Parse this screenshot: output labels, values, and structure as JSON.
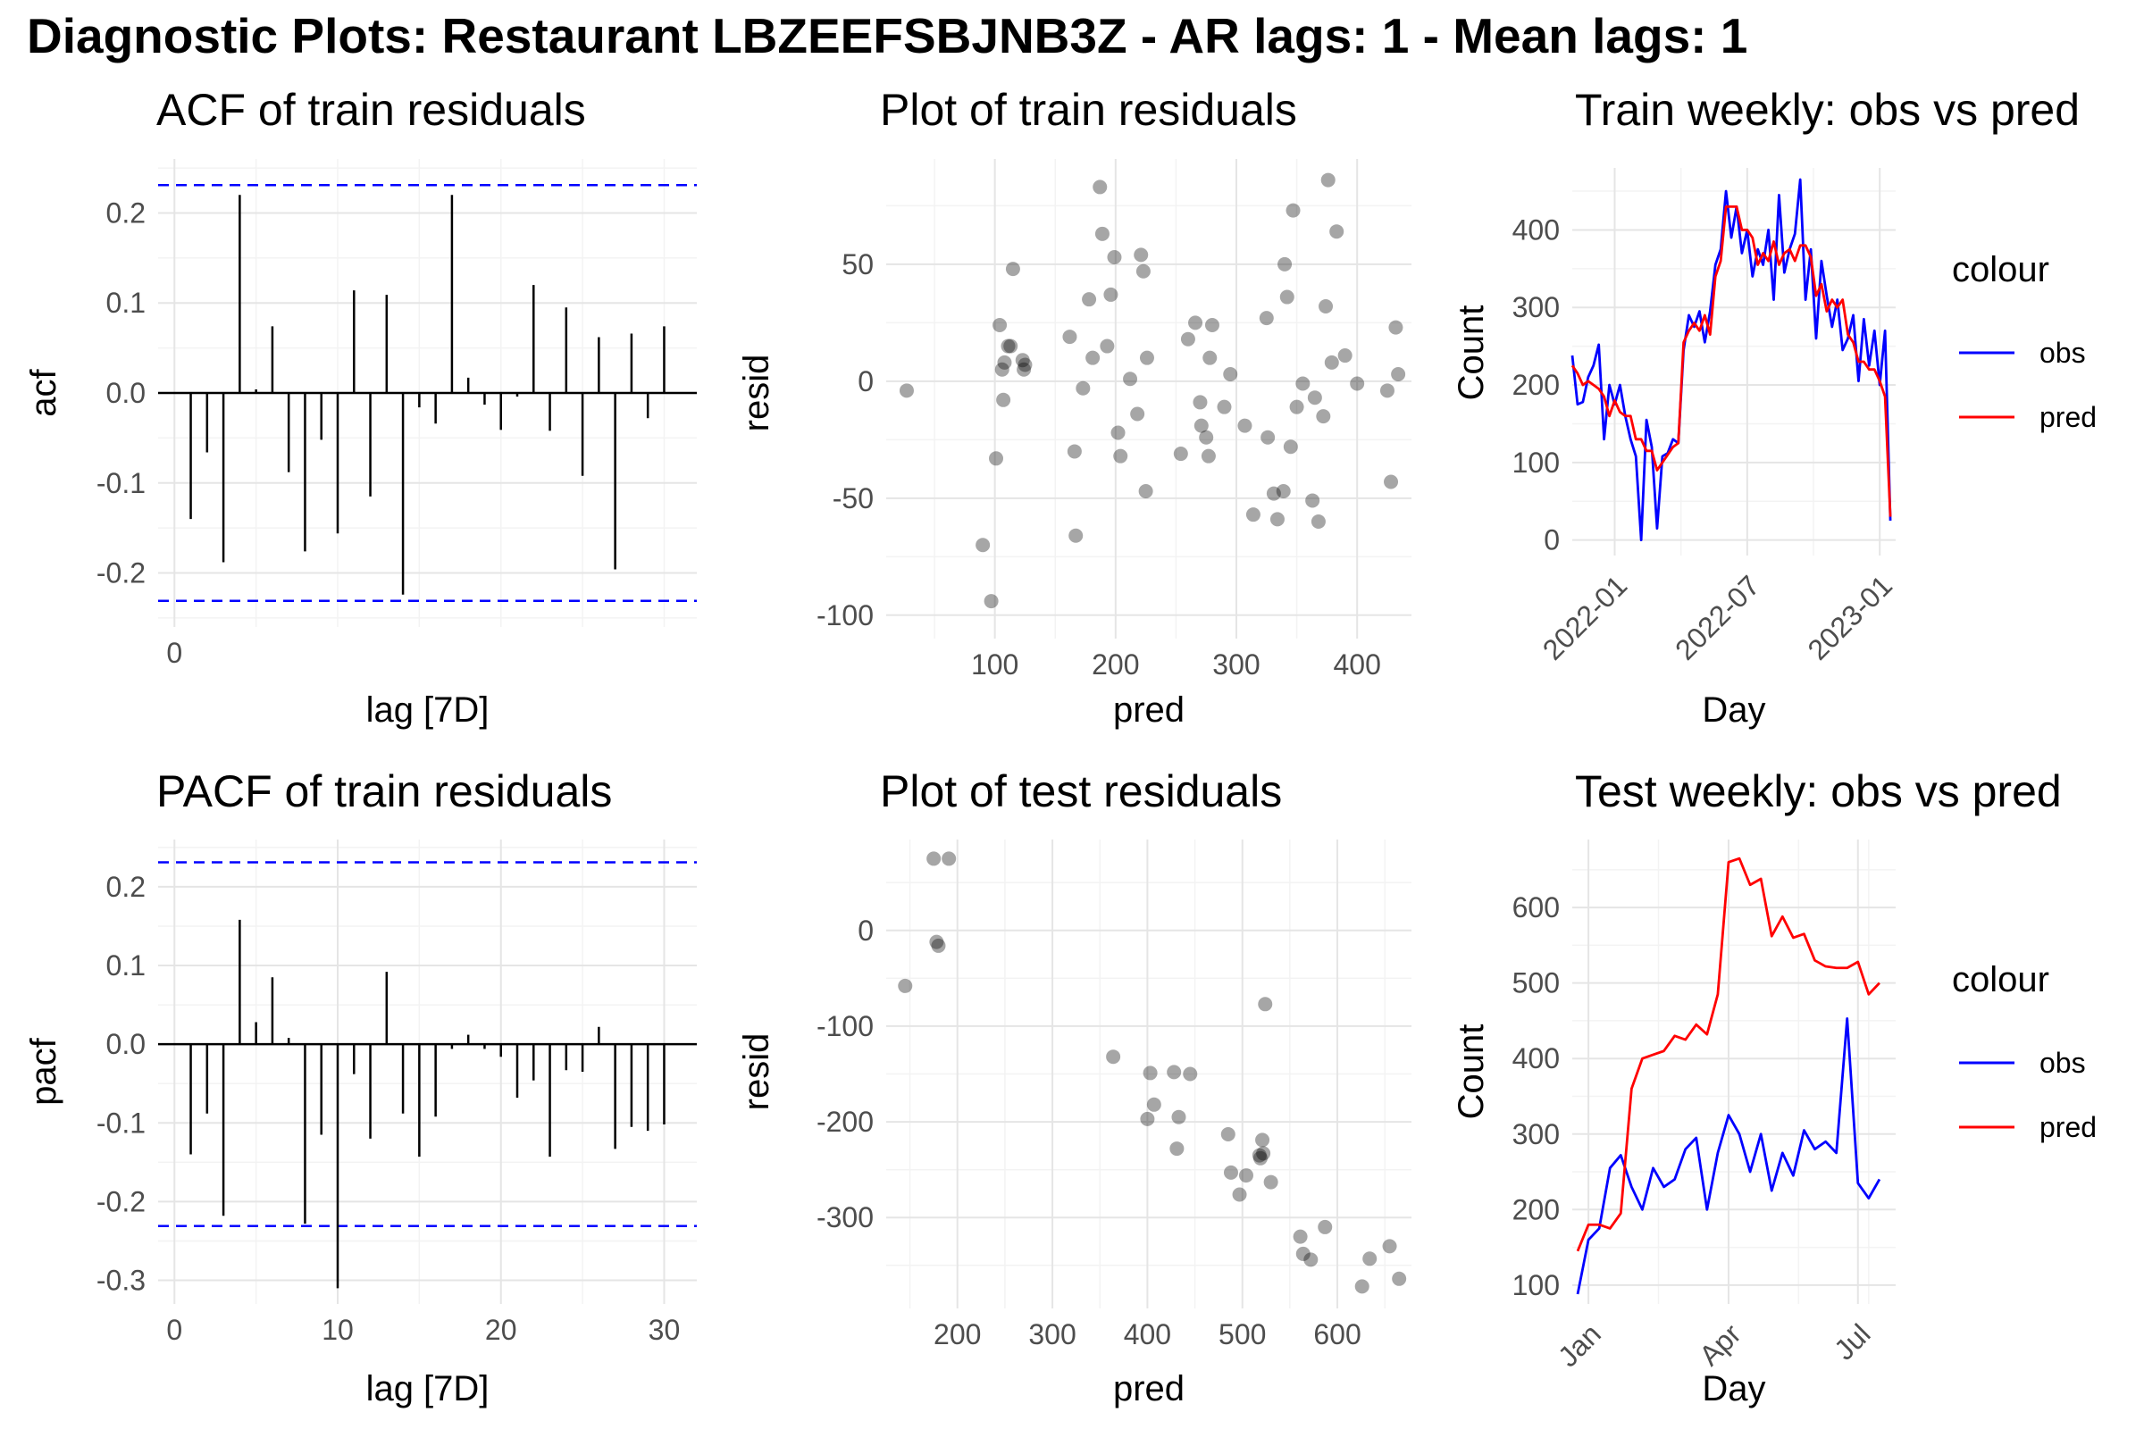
{
  "title": "Diagnostic Plots: Restaurant LBZEEFSBJNB3Z - AR lags: 1 - Mean lags: 1",
  "chart_data": [
    {
      "id": "acf-train",
      "type": "bar",
      "title": "ACF of train residuals",
      "xlabel": "lag [7D]",
      "ylabel": "acf",
      "xlim": [
        -1,
        32
      ],
      "ylim": [
        -0.26,
        0.26
      ],
      "x_ticks": [
        0
      ],
      "y_ticks": [
        -0.2,
        -0.1,
        0.0,
        0.1,
        0.2
      ],
      "y_tick_labels": [
        "-0.2",
        "-0.1",
        "0.0",
        "0.1",
        "0.2"
      ],
      "confidence_band": 0.231,
      "lags": [
        1,
        2,
        3,
        4,
        5,
        6,
        7,
        8,
        9,
        10,
        11,
        12,
        13,
        14,
        15,
        16,
        17,
        18,
        19,
        20,
        21,
        22,
        23,
        24,
        25,
        26,
        27,
        28,
        29,
        30
      ],
      "values": [
        -0.14,
        -0.066,
        -0.188,
        0.22,
        0.004,
        0.074,
        -0.088,
        -0.176,
        -0.052,
        -0.156,
        0.114,
        -0.115,
        0.109,
        -0.224,
        -0.016,
        -0.034,
        0.22,
        0.017,
        -0.013,
        -0.041,
        -0.004,
        0.12,
        -0.042,
        0.095,
        -0.092,
        0.062,
        -0.196,
        0.066,
        -0.028,
        0.074
      ],
      "grid": true
    },
    {
      "id": "pacf-train",
      "type": "bar",
      "title": "PACF of train residuals",
      "xlabel": "lag [7D]",
      "ylabel": "pacf",
      "xlim": [
        -1,
        32
      ],
      "ylim": [
        -0.33,
        0.26
      ],
      "x_ticks": [
        0,
        10,
        20,
        30
      ],
      "y_ticks": [
        -0.3,
        -0.2,
        -0.1,
        0.0,
        0.1,
        0.2
      ],
      "y_tick_labels": [
        "-0.3",
        "-0.2",
        "-0.1",
        "0.0",
        "0.1",
        "0.2"
      ],
      "confidence_band": 0.231,
      "lags": [
        1,
        2,
        3,
        4,
        5,
        6,
        7,
        8,
        9,
        10,
        11,
        12,
        13,
        14,
        15,
        16,
        17,
        18,
        19,
        20,
        21,
        22,
        23,
        24,
        25,
        26,
        27,
        28,
        29,
        30
      ],
      "values": [
        -0.14,
        -0.088,
        -0.218,
        0.158,
        0.028,
        0.085,
        0.008,
        -0.228,
        -0.115,
        -0.31,
        -0.038,
        -0.12,
        0.092,
        -0.088,
        -0.143,
        -0.092,
        -0.006,
        0.012,
        -0.006,
        -0.016,
        -0.068,
        -0.046,
        -0.143,
        -0.033,
        -0.035,
        0.022,
        -0.133,
        -0.105,
        -0.11,
        -0.102
      ],
      "grid": true
    },
    {
      "id": "train-resid",
      "type": "scatter",
      "title": "Plot of train residuals",
      "xlabel": "pred",
      "ylabel": "resid",
      "xlim": [
        10,
        445
      ],
      "ylim": [
        -110,
        95
      ],
      "x_ticks": [
        100,
        200,
        300,
        400
      ],
      "y_ticks": [
        -100,
        -50,
        0,
        50
      ],
      "points": [
        [
          27,
          -4
        ],
        [
          90,
          -70
        ],
        [
          97,
          -94
        ],
        [
          101,
          -33
        ],
        [
          104,
          24
        ],
        [
          106,
          5
        ],
        [
          107,
          -8
        ],
        [
          108,
          8
        ],
        [
          111,
          15
        ],
        [
          113,
          15
        ],
        [
          115,
          48
        ],
        [
          123,
          9
        ],
        [
          124,
          5
        ],
        [
          125,
          7
        ],
        [
          162,
          19
        ],
        [
          166,
          -30
        ],
        [
          167,
          -66
        ],
        [
          173,
          -3
        ],
        [
          178,
          35
        ],
        [
          181,
          10
        ],
        [
          187,
          83
        ],
        [
          189,
          63
        ],
        [
          193,
          15
        ],
        [
          196,
          37
        ],
        [
          199,
          53
        ],
        [
          202,
          -22
        ],
        [
          204,
          -32
        ],
        [
          212,
          1
        ],
        [
          218,
          -14
        ],
        [
          221,
          54
        ],
        [
          223,
          47
        ],
        [
          225,
          -47
        ],
        [
          226,
          10
        ],
        [
          254,
          -31
        ],
        [
          260,
          18
        ],
        [
          266,
          25
        ],
        [
          270,
          -9
        ],
        [
          271,
          -19
        ],
        [
          275,
          -24
        ],
        [
          277,
          -32
        ],
        [
          278,
          10
        ],
        [
          280,
          24
        ],
        [
          290,
          -11
        ],
        [
          295,
          3
        ],
        [
          307,
          -19
        ],
        [
          314,
          -57
        ],
        [
          325,
          27
        ],
        [
          326,
          -24
        ],
        [
          331,
          -48
        ],
        [
          334,
          -59
        ],
        [
          339,
          -47
        ],
        [
          340,
          50
        ],
        [
          342,
          36
        ],
        [
          345,
          -28
        ],
        [
          347,
          73
        ],
        [
          350,
          -11
        ],
        [
          355,
          -1
        ],
        [
          363,
          -51
        ],
        [
          365,
          -7
        ],
        [
          368,
          -60
        ],
        [
          372,
          -15
        ],
        [
          374,
          32
        ],
        [
          376,
          86
        ],
        [
          379,
          8
        ],
        [
          383,
          64
        ],
        [
          390,
          11
        ],
        [
          400,
          -1
        ],
        [
          425,
          -4
        ],
        [
          428,
          -43
        ],
        [
          432,
          23
        ],
        [
          434,
          3
        ]
      ],
      "grid": true
    },
    {
      "id": "test-resid",
      "type": "scatter",
      "title": "Plot of test residuals",
      "xlabel": "pred",
      "ylabel": "resid",
      "xlim": [
        125,
        678
      ],
      "ylim": [
        -395,
        95
      ],
      "x_ticks": [
        200,
        300,
        400,
        500,
        600
      ],
      "y_ticks": [
        -300,
        -200,
        -100,
        0
      ],
      "points": [
        [
          145,
          -58
        ],
        [
          175,
          75
        ],
        [
          178,
          -12
        ],
        [
          180,
          -16
        ],
        [
          191,
          75
        ],
        [
          364,
          -132
        ],
        [
          400,
          -197
        ],
        [
          403,
          -149
        ],
        [
          407,
          -182
        ],
        [
          428,
          -148
        ],
        [
          431,
          -228
        ],
        [
          433,
          -195
        ],
        [
          445,
          -150
        ],
        [
          485,
          -213
        ],
        [
          488,
          -253
        ],
        [
          497,
          -276
        ],
        [
          504,
          -256
        ],
        [
          518,
          -235
        ],
        [
          519,
          -238
        ],
        [
          521,
          -219
        ],
        [
          522,
          -233
        ],
        [
          524,
          -77
        ],
        [
          530,
          -263
        ],
        [
          561,
          -320
        ],
        [
          564,
          -338
        ],
        [
          572,
          -344
        ],
        [
          587,
          -310
        ],
        [
          626,
          -372
        ],
        [
          634,
          -343
        ],
        [
          655,
          -330
        ],
        [
          665,
          -364
        ]
      ],
      "grid": true
    },
    {
      "id": "train-weekly",
      "type": "line",
      "title": "Train weekly: obs vs pred",
      "xlabel": "Day",
      "ylabel": "Count",
      "xlim": [
        0,
        61
      ],
      "ylim": [
        -20,
        480
      ],
      "x_ticks": [
        8,
        33,
        58
      ],
      "x_tick_labels": [
        "2022-01",
        "2022-07",
        "2023-01"
      ],
      "y_ticks": [
        0,
        100,
        200,
        300,
        400
      ],
      "legend_title": "colour",
      "legend_position": "right",
      "series": [
        {
          "name": "obs",
          "color": "#0000ff",
          "values": [
            238,
            175,
            178,
            210,
            225,
            252,
            130,
            200,
            175,
            200,
            160,
            130,
            108,
            0,
            155,
            120,
            15,
            108,
            112,
            130,
            125,
            245,
            290,
            275,
            295,
            255,
            295,
            355,
            375,
            450,
            390,
            430,
            370,
            400,
            340,
            375,
            355,
            400,
            310,
            445,
            345,
            375,
            395,
            465,
            310,
            375,
            260,
            360,
            315,
            275,
            310,
            245,
            260,
            290,
            205,
            285,
            225,
            270,
            200,
            270,
            25
          ]
        },
        {
          "name": "pred",
          "color": "#ff0000",
          "values": [
            225,
            215,
            200,
            205,
            200,
            195,
            185,
            160,
            180,
            165,
            160,
            160,
            130,
            130,
            115,
            115,
            90,
            100,
            110,
            120,
            125,
            255,
            270,
            280,
            270,
            290,
            265,
            340,
            360,
            430,
            430,
            430,
            400,
            400,
            390,
            355,
            370,
            360,
            385,
            355,
            370,
            375,
            360,
            380,
            380,
            365,
            315,
            330,
            295,
            310,
            300,
            310,
            265,
            255,
            230,
            230,
            220,
            220,
            205,
            185,
            30
          ]
        }
      ],
      "grid": true
    },
    {
      "id": "test-weekly",
      "type": "line",
      "title": "Test weekly: obs vs pred",
      "xlabel": "Day",
      "ylabel": "Count",
      "xlim": [
        -0.5,
        29.5
      ],
      "ylim": [
        75,
        690
      ],
      "x_ticks": [
        1,
        14,
        26
      ],
      "x_tick_labels": [
        "Jan",
        "Apr",
        "Jul"
      ],
      "y_ticks": [
        100,
        200,
        300,
        400,
        500,
        600
      ],
      "legend_title": "colour",
      "legend_position": "right",
      "series": [
        {
          "name": "obs",
          "color": "#0000ff",
          "values": [
            88,
            160,
            175,
            255,
            272,
            230,
            200,
            255,
            230,
            240,
            280,
            295,
            200,
            275,
            325,
            300,
            250,
            300,
            225,
            275,
            245,
            305,
            280,
            290,
            275,
            453,
            235,
            215,
            240
          ]
        },
        {
          "name": "pred",
          "color": "#ff0000",
          "values": [
            145,
            180,
            180,
            175,
            195,
            360,
            400,
            405,
            410,
            430,
            425,
            445,
            432,
            485,
            660,
            665,
            630,
            638,
            562,
            588,
            560,
            565,
            530,
            522,
            520,
            520,
            528,
            485,
            500
          ]
        }
      ],
      "grid": true
    }
  ]
}
